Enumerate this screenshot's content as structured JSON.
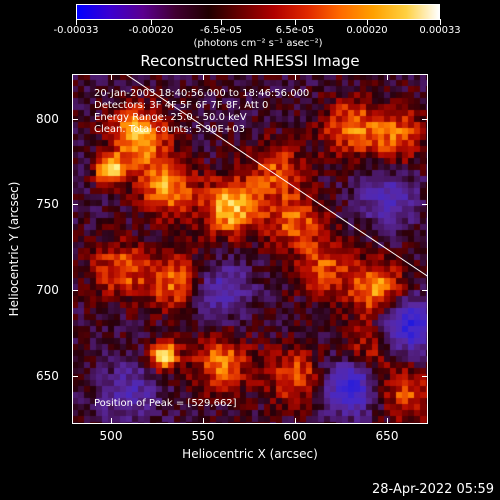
{
  "colorbar": {
    "tick_labels": [
      "-0.00033",
      "-0.00020",
      "-6.5e-05",
      "6.5e-05",
      "0.00020",
      "0.00033"
    ],
    "units": "(photons cm⁻² s⁻¹ asec⁻²)",
    "colors": [
      "#0000ff",
      "#3b00d0",
      "#5a0090",
      "#400030",
      "#200000",
      "#6a0000",
      "#b00000",
      "#e02800",
      "#ff6a00",
      "#ffa000",
      "#ffd040",
      "#ffffff"
    ]
  },
  "title": "Reconstructed RHESSI Image",
  "info_lines": [
    "20-Jan-2003 18:40:56.000 to 18:46:56.000",
    "Detectors: 3F 4F 5F 6F 7F 8F, Att 0",
    "Energy Range: 25.0 - 50.0 keV",
    "Clean. Total counts: 5.90E+03"
  ],
  "peak_label": "Position of Peak = [529,662]",
  "xaxis": {
    "label": "Heliocentric X (arcsec)",
    "ticks": [
      "500",
      "550",
      "600",
      "650"
    ]
  },
  "yaxis": {
    "label": "Heliocentric Y (arcsec)",
    "ticks": [
      "650",
      "700",
      "750",
      "800"
    ]
  },
  "date": "28-Apr-2022 05:59",
  "chart_data": {
    "type": "heatmap",
    "title": "Reconstructed RHESSI Image",
    "xlabel": "Heliocentric X (arcsec)",
    "ylabel": "Heliocentric Y (arcsec)",
    "xlim": [
      479,
      672
    ],
    "ylim": [
      622,
      826
    ],
    "zlim": [
      -0.00033,
      0.00033
    ],
    "peak": [
      529,
      662
    ],
    "hotspots": [
      {
        "x": 500,
        "y": 770,
        "level": 0.95
      },
      {
        "x": 515,
        "y": 790,
        "level": 0.8
      },
      {
        "x": 530,
        "y": 760,
        "level": 0.7
      },
      {
        "x": 565,
        "y": 748,
        "level": 0.85
      },
      {
        "x": 600,
        "y": 740,
        "level": 0.55
      },
      {
        "x": 590,
        "y": 770,
        "level": 0.5
      },
      {
        "x": 630,
        "y": 795,
        "level": 0.6
      },
      {
        "x": 655,
        "y": 790,
        "level": 0.55
      },
      {
        "x": 505,
        "y": 712,
        "level": 0.55
      },
      {
        "x": 535,
        "y": 705,
        "level": 0.6
      },
      {
        "x": 615,
        "y": 713,
        "level": 0.5
      },
      {
        "x": 645,
        "y": 700,
        "level": 0.75
      },
      {
        "x": 529,
        "y": 662,
        "level": 1.0
      },
      {
        "x": 560,
        "y": 658,
        "level": 0.6
      },
      {
        "x": 600,
        "y": 650,
        "level": 0.55
      },
      {
        "x": 640,
        "y": 665,
        "level": 0.45
      },
      {
        "x": 660,
        "y": 640,
        "level": 0.5
      }
    ],
    "coldspots": [
      {
        "x": 660,
        "y": 680,
        "level": -0.9
      },
      {
        "x": 630,
        "y": 645,
        "level": -0.8
      },
      {
        "x": 650,
        "y": 755,
        "level": -0.5
      },
      {
        "x": 560,
        "y": 700,
        "level": -0.5
      },
      {
        "x": 510,
        "y": 640,
        "level": -0.45
      }
    ],
    "limb_line": [
      [
        508,
        826
      ],
      [
        672,
        708
      ]
    ]
  }
}
